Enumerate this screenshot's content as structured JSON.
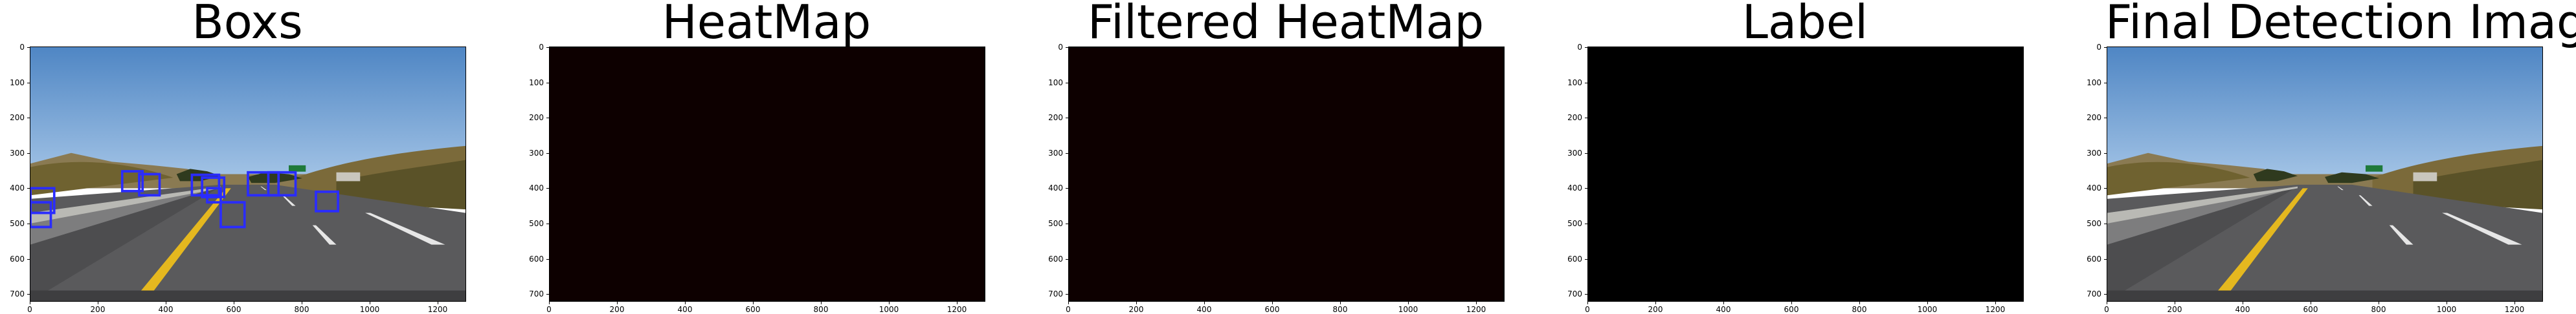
{
  "figure": {
    "panels": [
      {
        "id": "boxs",
        "title": "Boxs",
        "kind": "road-image-boxes"
      },
      {
        "id": "heatmap",
        "title": "HeatMap",
        "kind": "solid",
        "fill": "#0d0000"
      },
      {
        "id": "filtered-heatmap",
        "title": "Filtered HeatMap",
        "kind": "solid",
        "fill": "#0d0000"
      },
      {
        "id": "label",
        "title": "Label",
        "kind": "solid",
        "fill": "#000000"
      },
      {
        "id": "final",
        "title": "Final Detection Image",
        "kind": "road-image"
      }
    ]
  },
  "chart_data": {
    "type": "image-grid",
    "x_ticks": [
      "0",
      "200",
      "400",
      "600",
      "800",
      "1000",
      "1200"
    ],
    "y_ticks": [
      "0",
      "100",
      "200",
      "300",
      "400",
      "500",
      "600",
      "700"
    ],
    "xlim": [
      0,
      1280
    ],
    "ylim": [
      720,
      0
    ],
    "boxes": [
      {
        "x1": 0,
        "y1": 400,
        "x2": 70,
        "y2": 470
      },
      {
        "x1": 0,
        "y1": 440,
        "x2": 60,
        "y2": 510
      },
      {
        "x1": 270,
        "y1": 352,
        "x2": 330,
        "y2": 408
      },
      {
        "x1": 320,
        "y1": 360,
        "x2": 380,
        "y2": 420
      },
      {
        "x1": 475,
        "y1": 362,
        "x2": 555,
        "y2": 420
      },
      {
        "x1": 505,
        "y1": 370,
        "x2": 570,
        "y2": 425
      },
      {
        "x1": 520,
        "y1": 400,
        "x2": 560,
        "y2": 440
      },
      {
        "x1": 560,
        "y1": 440,
        "x2": 630,
        "y2": 510
      },
      {
        "x1": 640,
        "y1": 355,
        "x2": 730,
        "y2": 420
      },
      {
        "x1": 700,
        "y1": 355,
        "x2": 780,
        "y2": 420
      },
      {
        "x1": 840,
        "y1": 410,
        "x2": 905,
        "y2": 465
      }
    ],
    "box_color": "#2a2cff"
  }
}
